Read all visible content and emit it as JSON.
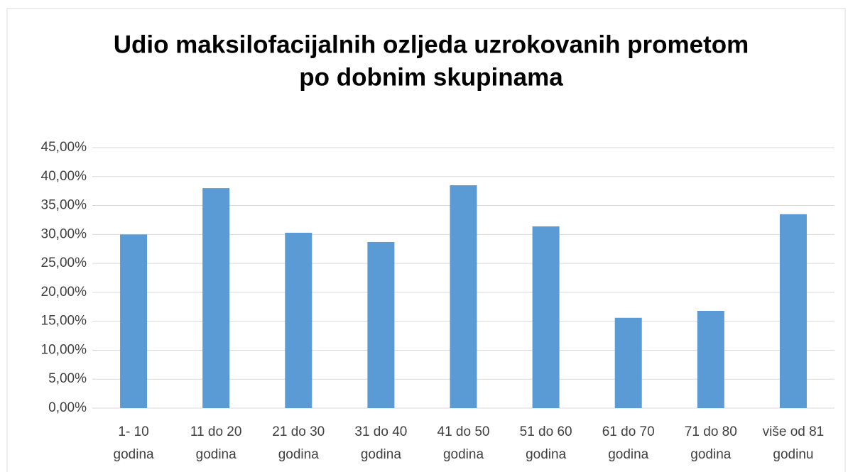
{
  "chart_data": {
    "type": "bar",
    "title": [
      "Udio maksilofacijalnih ozljeda uzrokovanih prometom",
      "po dobnim skupinama"
    ],
    "categories": [
      "1- 10 godina",
      "11 do 20 godina",
      "21 do 30 godina",
      "31 do 40 godina",
      "41 do 50 godina",
      "51 do 60 godina",
      "61 do 70 godina",
      "71 do 80 godina",
      "više od 81 godinu"
    ],
    "values": [
      30.0,
      38.0,
      30.3,
      28.7,
      38.5,
      31.4,
      15.6,
      16.8,
      33.5
    ],
    "color": "#5b9bd5",
    "ylim": [
      0,
      45
    ],
    "yticks": [
      {
        "value": 0,
        "label": "0,00%"
      },
      {
        "value": 5,
        "label": "5,00%"
      },
      {
        "value": 10,
        "label": "10,00%"
      },
      {
        "value": 15,
        "label": "15,00%"
      },
      {
        "value": 20,
        "label": "20,00%"
      },
      {
        "value": 25,
        "label": "25,00%"
      },
      {
        "value": 30,
        "label": "30,00%"
      },
      {
        "value": 35,
        "label": "35,00%"
      },
      {
        "value": 40,
        "label": "40,00%"
      },
      {
        "value": 45,
        "label": "45,00%"
      }
    ],
    "grid": true
  }
}
